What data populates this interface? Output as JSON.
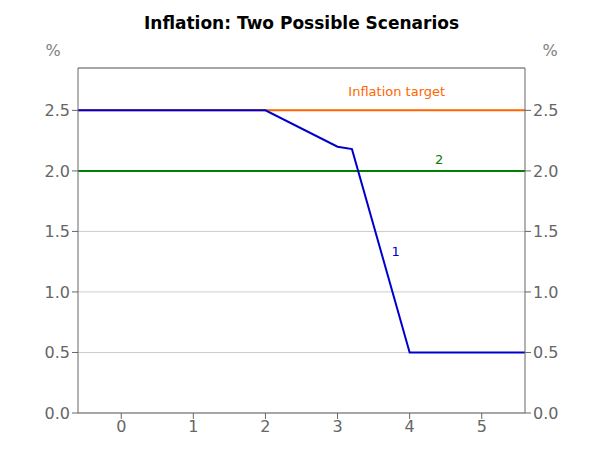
{
  "chart_data": {
    "type": "line",
    "title": "Inflation: Two Possible Scenarios",
    "y_label": "%",
    "y2_label": "%",
    "xlim": [
      -0.6,
      5.6
    ],
    "xticks": [
      0,
      1,
      2,
      3,
      4,
      5
    ],
    "ylim": [
      0.0,
      2.85
    ],
    "yticks": [
      {
        "value": 0.0,
        "label": "0.0"
      },
      0.5,
      {
        "value": 1.0,
        "label": "1.0"
      },
      1.5,
      {
        "value": 2.0,
        "label": "2.0"
      },
      2.5
    ],
    "y2lim": [
      0.0,
      2.85
    ],
    "y2ticks": [
      {
        "value": 0.0,
        "label": "0.0"
      },
      0.5,
      {
        "value": 1.0,
        "label": "1.0"
      },
      1.5,
      {
        "value": 2.0,
        "label": "2.0"
      },
      2.5
    ],
    "grid": true,
    "series": [
      {
        "color": "#FF6600",
        "x": [
          -0.6,
          5.6
        ],
        "values": [
          2.5,
          2.5
        ]
      },
      {
        "color": "#008000",
        "x": [
          -0.6,
          5.6
        ],
        "values": [
          2.0,
          2.0
        ]
      },
      {
        "color": "#0000CC",
        "x": [
          -0.6,
          2.0,
          3.0,
          3.2,
          4.0,
          5.6
        ],
        "values": [
          2.5,
          2.5,
          2.2,
          2.18,
          0.5,
          0.5
        ]
      }
    ],
    "annotations": [
      {
        "text": "Inflation target",
        "x": 3.15,
        "y": 2.62,
        "color": "#FF6600"
      },
      {
        "text": "2",
        "x": 4.35,
        "y": 2.06,
        "color": "#008000"
      },
      {
        "text": "1",
        "x": 3.75,
        "y": 1.3,
        "color": "#0000CC"
      }
    ]
  }
}
